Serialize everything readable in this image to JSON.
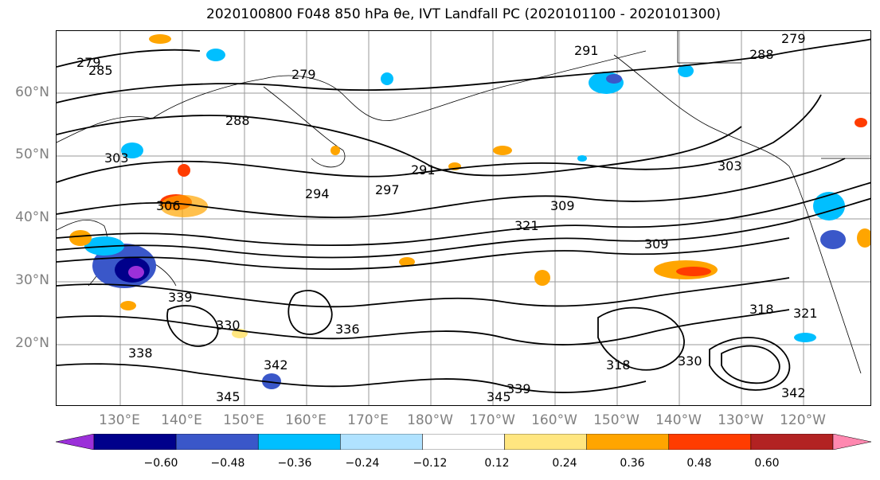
{
  "title": "2020100800 F048 850 hPa θe, IVT Landfall PC (2020101100 - 2020101300)",
  "lat_labels": [
    {
      "text": "60°N",
      "lat": 60
    },
    {
      "text": "50°N",
      "lat": 50
    },
    {
      "text": "40°N",
      "lat": 40
    },
    {
      "text": "30°N",
      "lat": 30
    },
    {
      "text": "20°N",
      "lat": 20
    }
  ],
  "lon_labels": [
    "130°E",
    "140°E",
    "150°E",
    "160°E",
    "170°E",
    "180°W",
    "170°W",
    "160°W",
    "150°W",
    "140°W",
    "130°W",
    "120°W"
  ],
  "contour_labels": [
    "279",
    "285",
    "279",
    "288",
    "291",
    "294",
    "297",
    "291",
    "288",
    "279",
    "303",
    "309",
    "306",
    "303",
    "309",
    "321",
    "318",
    "321",
    "339",
    "330",
    "336",
    "342",
    "345",
    "339",
    "345",
    "342",
    "338",
    "318",
    "330"
  ],
  "colorbar": {
    "colors": [
      "#9b30d9",
      "#00008b",
      "#3a57c9",
      "#00bfff",
      "#b0e2ff",
      "#ffffff",
      "#ffe680",
      "#ffa500",
      "#ff3c00",
      "#b22222",
      "#ff88b0"
    ],
    "ticks": [
      "−0.60",
      "−0.48",
      "−0.36",
      "−0.24",
      "−0.12",
      "0.12",
      "0.24",
      "0.36",
      "0.48",
      "0.60"
    ]
  }
}
